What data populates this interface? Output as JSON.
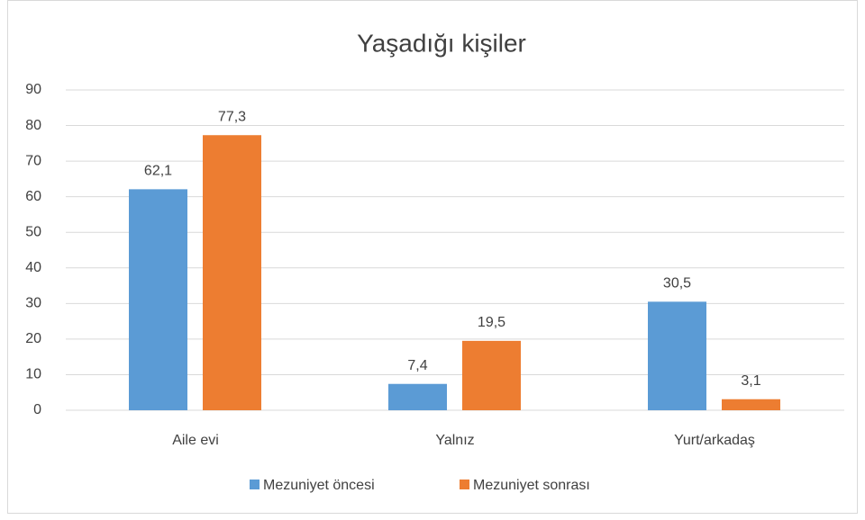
{
  "chart_data": {
    "type": "bar",
    "title": "Yaşadığı kişiler",
    "categories": [
      "Aile evi",
      "Yalnız",
      "Yurt/arkadaş"
    ],
    "series": [
      {
        "name": "Mezuniyet öncesi",
        "color": "#5b9bd5",
        "values": [
          62.1,
          7.4,
          30.5
        ],
        "value_labels": [
          "62,1",
          "7,4",
          "30,5"
        ]
      },
      {
        "name": "Mezuniyet sonrası",
        "color": "#ed7d31",
        "values": [
          77.3,
          19.5,
          3.1
        ],
        "value_labels": [
          "77,3",
          "19,5",
          "3,1"
        ]
      }
    ],
    "ylim": [
      0,
      90
    ],
    "yticks": [
      0,
      10,
      20,
      30,
      40,
      50,
      60,
      70,
      80,
      90
    ],
    "grid": true,
    "legend": "bottom"
  }
}
